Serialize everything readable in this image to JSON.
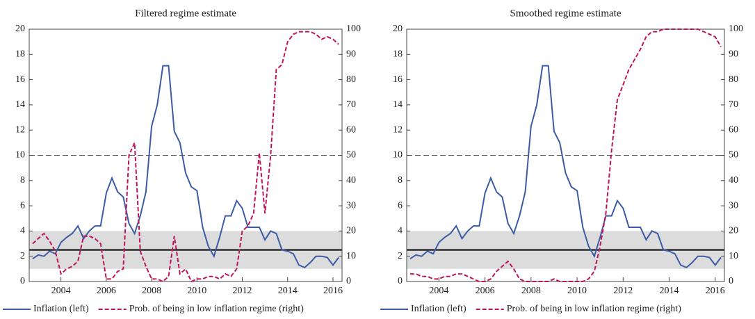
{
  "chart_data": [
    {
      "type": "line",
      "title": "Filtered regime estimate",
      "x": [
        2002.75,
        2003,
        2003.25,
        2003.5,
        2003.75,
        2004,
        2004.25,
        2004.5,
        2004.75,
        2005,
        2005.25,
        2005.5,
        2005.75,
        2006,
        2006.25,
        2006.5,
        2006.75,
        2007,
        2007.25,
        2007.5,
        2007.75,
        2008,
        2008.25,
        2008.5,
        2008.75,
        2009,
        2009.25,
        2009.5,
        2009.75,
        2010,
        2010.25,
        2010.5,
        2010.75,
        2011,
        2011.25,
        2011.5,
        2011.75,
        2012,
        2012.25,
        2012.5,
        2012.75,
        2013,
        2013.25,
        2013.5,
        2013.75,
        2014,
        2014.25,
        2014.5,
        2014.75,
        2015,
        2015.25,
        2015.5,
        2015.75,
        2016,
        2016.25
      ],
      "series": [
        {
          "name": "Inflation (left)",
          "color": "#3b5ba5",
          "style": "solid",
          "axis": "y",
          "values": [
            1.8,
            2.1,
            2.0,
            2.4,
            2.2,
            3.1,
            3.5,
            3.8,
            4.4,
            3.4,
            4.0,
            4.4,
            4.4,
            7.0,
            8.2,
            7.1,
            6.7,
            4.6,
            3.8,
            5.2,
            7.1,
            12.3,
            14.0,
            17.1,
            17.1,
            11.9,
            11.0,
            8.6,
            7.5,
            7.2,
            4.3,
            2.8,
            2.0,
            3.5,
            5.2,
            5.2,
            6.4,
            5.8,
            4.3,
            4.3,
            4.3,
            3.3,
            4.0,
            3.8,
            2.5,
            2.4,
            2.2,
            1.3,
            1.1,
            1.5,
            2.0,
            2.0,
            1.9,
            1.3,
            1.9
          ]
        },
        {
          "name": "Prob. of being in low inflation regime (right)",
          "color": "#c0145a",
          "style": "dashed",
          "axis": "y2",
          "values": [
            15,
            17,
            19,
            16,
            12,
            3,
            5,
            6,
            8,
            18,
            18,
            17,
            15,
            1,
            1,
            4,
            5,
            50,
            55,
            12,
            6,
            1,
            1,
            0,
            2,
            18,
            3,
            5,
            0,
            1,
            1,
            2,
            2,
            1,
            3,
            2,
            5,
            20,
            22,
            27,
            51,
            27,
            50,
            84,
            86,
            95,
            98,
            99,
            99,
            99,
            98,
            96,
            97,
            96,
            94
          ]
        }
      ],
      "xlim": [
        2002.6,
        2016.4
      ],
      "xticks": [
        2004,
        2006,
        2008,
        2010,
        2012,
        2014,
        2016
      ],
      "ylim": [
        0,
        20
      ],
      "yticks": [
        0,
        2,
        4,
        6,
        8,
        10,
        12,
        14,
        16,
        18,
        20
      ],
      "y2lim": [
        0,
        100
      ],
      "y2ticks": [
        0,
        10,
        20,
        30,
        40,
        50,
        60,
        70,
        80,
        90,
        100
      ],
      "reference_band": [
        1,
        4
      ],
      "reference_lines": [
        {
          "value": 2.5,
          "style": "solid"
        },
        {
          "value": 10,
          "style": "dashed"
        }
      ]
    },
    {
      "type": "line",
      "title": "Smoothed regime estimate",
      "x": [
        2002.75,
        2003,
        2003.25,
        2003.5,
        2003.75,
        2004,
        2004.25,
        2004.5,
        2004.75,
        2005,
        2005.25,
        2005.5,
        2005.75,
        2006,
        2006.25,
        2006.5,
        2006.75,
        2007,
        2007.25,
        2007.5,
        2007.75,
        2008,
        2008.25,
        2008.5,
        2008.75,
        2009,
        2009.25,
        2009.5,
        2009.75,
        2010,
        2010.25,
        2010.5,
        2010.75,
        2011,
        2011.25,
        2011.5,
        2011.75,
        2012,
        2012.25,
        2012.5,
        2012.75,
        2013,
        2013.25,
        2013.5,
        2013.75,
        2014,
        2014.25,
        2014.5,
        2014.75,
        2015,
        2015.25,
        2015.5,
        2015.75,
        2016,
        2016.25
      ],
      "series": [
        {
          "name": "Inflation (left)",
          "color": "#3b5ba5",
          "style": "solid",
          "axis": "y",
          "values": [
            1.8,
            2.1,
            2.0,
            2.4,
            2.2,
            3.1,
            3.5,
            3.8,
            4.4,
            3.4,
            4.0,
            4.4,
            4.4,
            7.0,
            8.2,
            7.1,
            6.7,
            4.6,
            3.8,
            5.2,
            7.1,
            12.3,
            14.0,
            17.1,
            17.1,
            11.9,
            11.0,
            8.6,
            7.5,
            7.2,
            4.3,
            2.8,
            2.0,
            3.5,
            5.2,
            5.2,
            6.4,
            5.8,
            4.3,
            4.3,
            4.3,
            3.3,
            4.0,
            3.8,
            2.5,
            2.4,
            2.2,
            1.3,
            1.1,
            1.5,
            2.0,
            2.0,
            1.9,
            1.3,
            1.9
          ]
        },
        {
          "name": "Prob. of being in low inflation regime (right)",
          "color": "#c0145a",
          "style": "dashed",
          "axis": "y2",
          "values": [
            3,
            3,
            2,
            2,
            1,
            1,
            2,
            2,
            3,
            3,
            2,
            1,
            0,
            0,
            1,
            4,
            6,
            8,
            5,
            1,
            0,
            0,
            0,
            0,
            0,
            1,
            0,
            0,
            0,
            0,
            0,
            1,
            4,
            14,
            27,
            52,
            72,
            78,
            84,
            88,
            92,
            97,
            99,
            99,
            100,
            100,
            100,
            100,
            100,
            100,
            100,
            99,
            98,
            97,
            93
          ]
        }
      ],
      "xlim": [
        2002.6,
        2016.4
      ],
      "xticks": [
        2004,
        2006,
        2008,
        2010,
        2012,
        2014,
        2016
      ],
      "ylim": [
        0,
        20
      ],
      "yticks": [
        0,
        2,
        4,
        6,
        8,
        10,
        12,
        14,
        16,
        18,
        20
      ],
      "y2lim": [
        0,
        100
      ],
      "y2ticks": [
        0,
        10,
        20,
        30,
        40,
        50,
        60,
        70,
        80,
        90,
        100
      ],
      "reference_band": [
        1,
        4
      ],
      "reference_lines": [
        {
          "value": 2.5,
          "style": "solid"
        },
        {
          "value": 10,
          "style": "dashed"
        }
      ]
    }
  ]
}
